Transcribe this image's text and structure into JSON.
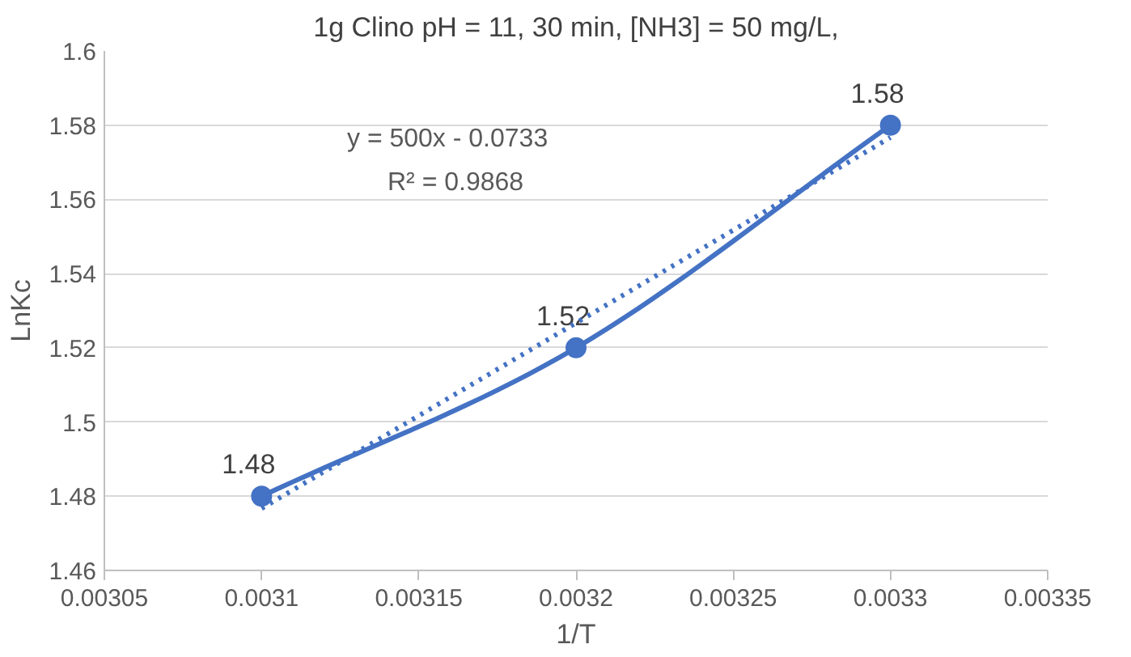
{
  "chart_data": {
    "type": "line",
    "title": "1g Clino pH = 11, 30 min, [NH3] = 50 mg/L,",
    "xlabel": "1/T",
    "ylabel": "LnKc",
    "x": [
      0.0031,
      0.0032,
      0.0033
    ],
    "series": [
      {
        "color": "#4472c4",
        "values": [
          1.48,
          1.52,
          1.58
        ],
        "marker": "circle",
        "line_style": "solid",
        "data_labels": true
      },
      {
        "type": "line",
        "color": "#4472c4",
        "x": [
          0.0031,
          0.0033
        ],
        "values": [
          1.4767,
          1.5767
        ],
        "line_style": "dotted",
        "marker": "none"
      }
    ],
    "annotations": [
      "y = 500x - 0.0733",
      "R² = 0.9868"
    ],
    "xlim": [
      0.00305,
      0.00335
    ],
    "xticks": [
      0.00305,
      0.0031,
      0.00315,
      0.0032,
      0.00325,
      0.0033,
      0.00335
    ],
    "ylim": [
      1.46,
      1.6
    ],
    "yticks": [
      1.46,
      1.48,
      1.5,
      1.52,
      1.54,
      1.56,
      1.58,
      1.6
    ],
    "grid": "y"
  }
}
